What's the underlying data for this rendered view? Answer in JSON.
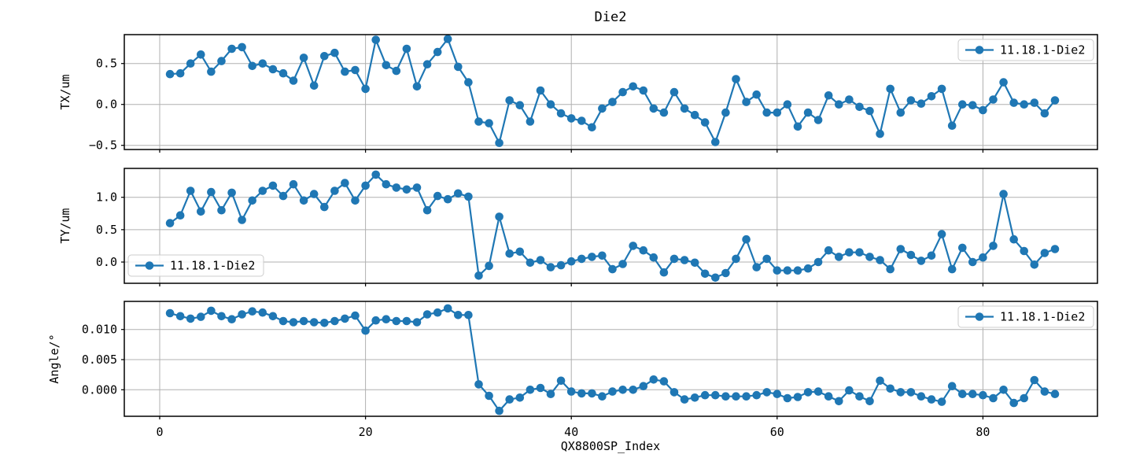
{
  "title": "Die2",
  "legend_label": "11.18.1-Die2",
  "colors": {
    "series": "#1f77b4",
    "grid": "#b0b0b0",
    "spine": "#000000",
    "legend_border": "#cccccc",
    "background": "#ffffff"
  },
  "x_axis": {
    "label": "QX8800SP_Index",
    "ticks": [
      {
        "v": 0,
        "label": "0"
      },
      {
        "v": 20,
        "label": "20"
      },
      {
        "v": 40,
        "label": "40"
      },
      {
        "v": 60,
        "label": "60"
      },
      {
        "v": 80,
        "label": "80"
      }
    ],
    "xlim": [
      -3.44,
      91.13
    ]
  },
  "chart_data": [
    {
      "type": "line",
      "name": "TX",
      "ylabel": "TX/um",
      "legend": "11.18.1-Die2",
      "legend_position": "upper right",
      "grid": true,
      "ylim": [
        -0.551,
        0.853
      ],
      "yticks": [
        {
          "v": 0.5,
          "label": "0.5"
        },
        {
          "v": 0.0,
          "label": "0.0"
        },
        {
          "v": -0.5,
          "label": "−0.5"
        }
      ],
      "x_start": 1,
      "values": [
        0.37,
        0.38,
        0.5,
        0.61,
        0.4,
        0.53,
        0.68,
        0.7,
        0.47,
        0.5,
        0.43,
        0.38,
        0.29,
        0.57,
        0.23,
        0.59,
        0.63,
        0.4,
        0.42,
        0.19,
        0.79,
        0.48,
        0.41,
        0.68,
        0.22,
        0.49,
        0.64,
        0.8,
        0.46,
        0.27,
        -0.21,
        -0.23,
        -0.47,
        0.05,
        -0.01,
        -0.21,
        0.17,
        0.0,
        -0.11,
        -0.17,
        -0.2,
        -0.28,
        -0.05,
        0.03,
        0.15,
        0.22,
        0.17,
        -0.05,
        -0.1,
        0.15,
        -0.05,
        -0.13,
        -0.22,
        -0.46,
        -0.1,
        0.31,
        0.03,
        0.12,
        -0.1,
        -0.1,
        0.0,
        -0.27,
        -0.1,
        -0.19,
        0.11,
        0.0,
        0.06,
        -0.03,
        -0.08,
        -0.36,
        0.19,
        -0.1,
        0.05,
        0.01,
        0.1,
        0.19,
        -0.26,
        0.0,
        -0.01,
        -0.07,
        0.06,
        0.27,
        0.02,
        0.0,
        0.02,
        -0.11,
        0.05
      ]
    },
    {
      "type": "line",
      "name": "TY",
      "ylabel": "TY/um",
      "legend": "11.18.1-Die2",
      "legend_position": "lower left",
      "grid": true,
      "ylim": [
        -0.328,
        1.446
      ],
      "yticks": [
        {
          "v": 1.0,
          "label": "1.0"
        },
        {
          "v": 0.5,
          "label": "0.5"
        },
        {
          "v": 0.0,
          "label": "0.0"
        }
      ],
      "x_start": 1,
      "values": [
        0.6,
        0.72,
        1.1,
        0.78,
        1.08,
        0.8,
        1.07,
        0.65,
        0.95,
        1.1,
        1.18,
        1.02,
        1.2,
        0.95,
        1.05,
        0.85,
        1.1,
        1.22,
        0.95,
        1.18,
        1.35,
        1.2,
        1.15,
        1.12,
        1.15,
        0.8,
        1.02,
        0.97,
        1.06,
        1.01,
        -0.21,
        -0.06,
        0.7,
        0.13,
        0.16,
        -0.01,
        0.03,
        -0.08,
        -0.05,
        0.01,
        0.05,
        0.08,
        0.1,
        -0.11,
        -0.03,
        0.25,
        0.18,
        0.07,
        -0.16,
        0.05,
        0.03,
        -0.01,
        -0.18,
        -0.24,
        -0.17,
        0.05,
        0.35,
        -0.08,
        0.05,
        -0.13,
        -0.13,
        -0.13,
        -0.1,
        0.0,
        0.18,
        0.08,
        0.15,
        0.15,
        0.08,
        0.03,
        -0.11,
        0.2,
        0.11,
        0.02,
        0.1,
        0.43,
        -0.11,
        0.22,
        0.0,
        0.07,
        0.25,
        1.05,
        0.35,
        0.17,
        -0.04,
        0.14,
        0.2
      ]
    },
    {
      "type": "line",
      "name": "Angle",
      "ylabel": "Angle/°",
      "legend": "11.18.1-Die2",
      "legend_position": "upper right",
      "grid": true,
      "ylim": [
        -0.0044,
        0.01466
      ],
      "yticks": [
        {
          "v": 0.01,
          "label": "0.010"
        },
        {
          "v": 0.005,
          "label": "0.005"
        },
        {
          "v": 0.0,
          "label": "0.000"
        }
      ],
      "x_start": 1,
      "values": [
        0.0127,
        0.0122,
        0.0118,
        0.0121,
        0.0131,
        0.0122,
        0.0117,
        0.0125,
        0.013,
        0.0128,
        0.0122,
        0.0114,
        0.0112,
        0.0114,
        0.0112,
        0.0111,
        0.0114,
        0.0118,
        0.0123,
        0.0098,
        0.0115,
        0.0117,
        0.0114,
        0.0114,
        0.0112,
        0.0125,
        0.0128,
        0.0135,
        0.0124,
        0.0124,
        0.0009,
        -0.001,
        -0.0035,
        -0.0016,
        -0.0013,
        0.0,
        0.0003,
        -0.0007,
        0.0015,
        -0.0003,
        -0.0006,
        -0.0006,
        -0.0011,
        -0.0003,
        0.0,
        0.0,
        0.0006,
        0.0017,
        0.0014,
        -0.0004,
        -0.0016,
        -0.0013,
        -0.0009,
        -0.0009,
        -0.0011,
        -0.0011,
        -0.0011,
        -0.0009,
        -0.0004,
        -0.0007,
        -0.0014,
        -0.0012,
        -0.0004,
        -0.0003,
        -0.0011,
        -0.0019,
        -0.0001,
        -0.0011,
        -0.0019,
        0.0015,
        0.0002,
        -0.0004,
        -0.0004,
        -0.0011,
        -0.0016,
        -0.002,
        0.0006,
        -0.0007,
        -0.0007,
        -0.0009,
        -0.0014,
        0.0,
        -0.0022,
        -0.0014,
        0.0016,
        -0.0003,
        -0.0007
      ]
    }
  ]
}
